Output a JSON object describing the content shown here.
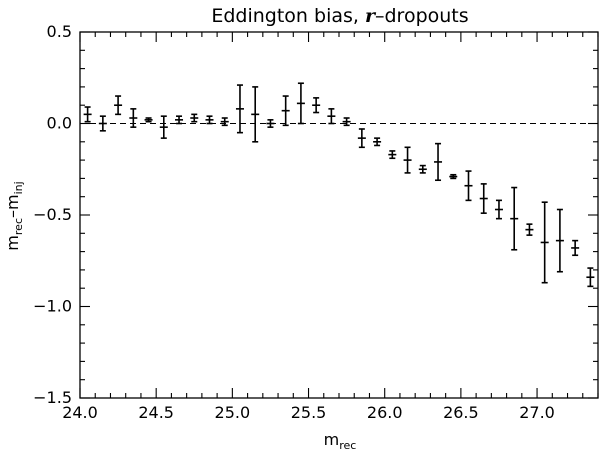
{
  "chart_data": {
    "type": "scatter",
    "title_prefix": "Eddington bias, ",
    "title_emphasis": "r",
    "title_suffix": "–dropouts",
    "xlabel_main": "m",
    "xlabel_sub": "rec",
    "ylabel_a_main": "m",
    "ylabel_a_sub": "rec",
    "ylabel_minus": "–",
    "ylabel_b_main": "m",
    "ylabel_b_sub": "inj",
    "xlim": [
      24.0,
      27.4
    ],
    "ylim": [
      -1.5,
      0.5
    ],
    "xticks": [
      24.0,
      24.5,
      25.0,
      25.5,
      26.0,
      26.5,
      27.0
    ],
    "xtick_labels": [
      "24.0",
      "24.5",
      "25.0",
      "25.5",
      "26.0",
      "26.5",
      "27.0"
    ],
    "yticks": [
      -1.5,
      -1.0,
      -0.5,
      0.0,
      0.5
    ],
    "ytick_labels": [
      "−1.5",
      "−1.0",
      "−0.5",
      "0.0",
      "0.5"
    ],
    "reference_line_y": 0.0,
    "series": [
      {
        "points": [
          {
            "x": 24.05,
            "y": 0.05,
            "err": 0.04
          },
          {
            "x": 24.15,
            "y": 0.0,
            "err": 0.04
          },
          {
            "x": 24.25,
            "y": 0.1,
            "err": 0.05
          },
          {
            "x": 24.35,
            "y": 0.03,
            "err": 0.05
          },
          {
            "x": 24.45,
            "y": 0.02,
            "err": 0.01
          },
          {
            "x": 24.55,
            "y": -0.02,
            "err": 0.06
          },
          {
            "x": 24.65,
            "y": 0.02,
            "err": 0.02
          },
          {
            "x": 24.75,
            "y": 0.03,
            "err": 0.02
          },
          {
            "x": 24.85,
            "y": 0.02,
            "err": 0.02
          },
          {
            "x": 24.95,
            "y": 0.01,
            "err": 0.02
          },
          {
            "x": 25.05,
            "y": 0.08,
            "err": 0.13
          },
          {
            "x": 25.15,
            "y": 0.05,
            "err": 0.15
          },
          {
            "x": 25.25,
            "y": 0.0,
            "err": 0.02
          },
          {
            "x": 25.35,
            "y": 0.07,
            "err": 0.08
          },
          {
            "x": 25.45,
            "y": 0.11,
            "err": 0.11
          },
          {
            "x": 25.55,
            "y": 0.1,
            "err": 0.04
          },
          {
            "x": 25.65,
            "y": 0.04,
            "err": 0.04
          },
          {
            "x": 25.75,
            "y": 0.01,
            "err": 0.02
          },
          {
            "x": 25.85,
            "y": -0.08,
            "err": 0.05
          },
          {
            "x": 25.95,
            "y": -0.1,
            "err": 0.02
          },
          {
            "x": 26.05,
            "y": -0.17,
            "err": 0.02
          },
          {
            "x": 26.15,
            "y": -0.2,
            "err": 0.07
          },
          {
            "x": 26.25,
            "y": -0.25,
            "err": 0.02
          },
          {
            "x": 26.35,
            "y": -0.21,
            "err": 0.1
          },
          {
            "x": 26.45,
            "y": -0.29,
            "err": 0.01
          },
          {
            "x": 26.55,
            "y": -0.34,
            "err": 0.08
          },
          {
            "x": 26.65,
            "y": -0.41,
            "err": 0.08
          },
          {
            "x": 26.75,
            "y": -0.47,
            "err": 0.05
          },
          {
            "x": 26.85,
            "y": -0.52,
            "err": 0.17
          },
          {
            "x": 26.95,
            "y": -0.58,
            "err": 0.03
          },
          {
            "x": 27.05,
            "y": -0.65,
            "err": 0.22
          },
          {
            "x": 27.15,
            "y": -0.64,
            "err": 0.17
          },
          {
            "x": 27.25,
            "y": -0.68,
            "err": 0.04
          },
          {
            "x": 27.35,
            "y": -0.84,
            "err": 0.05
          }
        ]
      }
    ]
  }
}
